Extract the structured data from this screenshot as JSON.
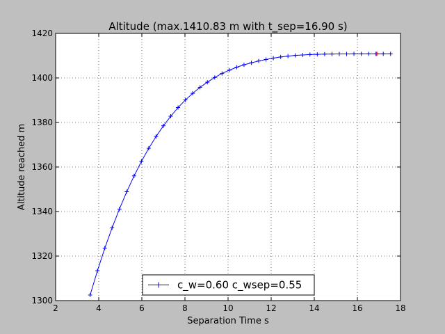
{
  "chart_data": {
    "type": "line",
    "title": "Altitude (max.1410.83 m with t_sep=16.90 s)",
    "xlabel": "Separation Time s",
    "ylabel": "Altitude reached m",
    "xlim": [
      2,
      18
    ],
    "ylim": [
      1300,
      1420
    ],
    "xticks": [
      "2",
      "4",
      "6",
      "8",
      "10",
      "12",
      "14",
      "16",
      "18"
    ],
    "yticks": [
      "1300",
      "1320",
      "1340",
      "1360",
      "1380",
      "1400",
      "1420"
    ],
    "grid": true,
    "legend_position": "lower-center",
    "series": [
      {
        "name": "c_w=0.60 c_wsep=0.55",
        "color": "#0000ff",
        "marker": "plus",
        "x": [
          3.6,
          3.94,
          4.28,
          4.62,
          4.96,
          5.3,
          5.64,
          5.98,
          6.32,
          6.66,
          7.0,
          7.34,
          7.68,
          8.02,
          8.36,
          8.7,
          9.04,
          9.38,
          9.72,
          10.06,
          10.4,
          10.74,
          11.08,
          11.42,
          11.76,
          12.1,
          12.44,
          12.78,
          13.12,
          13.46,
          13.8,
          14.14,
          14.48,
          14.82,
          15.16,
          15.5,
          15.84,
          16.18,
          16.52,
          16.86,
          17.2,
          17.54
        ],
        "y": [
          1302.5,
          1313.4,
          1323.5,
          1332.7,
          1341.1,
          1348.9,
          1356.0,
          1362.5,
          1368.4,
          1373.7,
          1378.5,
          1382.8,
          1386.7,
          1390.1,
          1393.1,
          1395.8,
          1398.1,
          1400.2,
          1402.0,
          1403.5,
          1404.8,
          1405.9,
          1406.8,
          1407.6,
          1408.3,
          1408.9,
          1409.4,
          1409.8,
          1410.1,
          1410.3,
          1410.5,
          1410.6,
          1410.7,
          1410.75,
          1410.8,
          1410.8,
          1410.82,
          1410.83,
          1410.83,
          1410.83,
          1410.83,
          1410.83
        ]
      }
    ],
    "highlight": {
      "x": 16.9,
      "y": 1410.83,
      "color": "#ff0000"
    }
  }
}
